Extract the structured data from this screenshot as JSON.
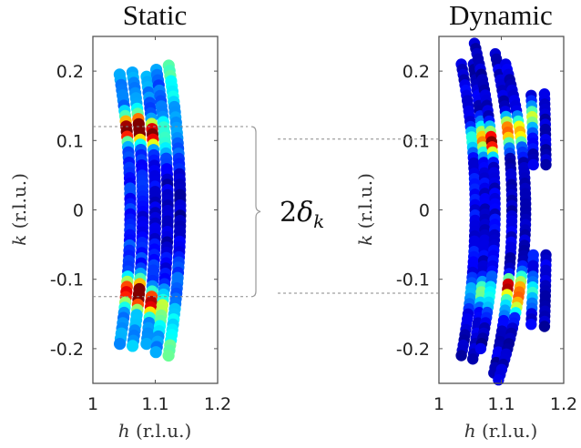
{
  "annotation": {
    "label_main": "2",
    "label_symbol": "δ",
    "label_sub": "k",
    "guide_k_static": [
      0.12,
      -0.125
    ],
    "guide_k_dynamic": [
      0.102,
      -0.12
    ]
  },
  "chart_data": [
    {
      "type": "scatter",
      "title": "Static",
      "xlabel_var": "h",
      "xlabel_unit": " (r.l.u.)",
      "ylabel_var": "k",
      "ylabel_unit": " (r.l.u.)",
      "xlim": [
        1.0,
        1.2
      ],
      "ylim": [
        -0.25,
        0.25
      ],
      "xticks": [
        1.0,
        1.1,
        1.2
      ],
      "xtick_labels": [
        "1",
        "1.1",
        "1.2"
      ],
      "yticks": [
        0.2,
        0.1,
        0,
        -0.1,
        -0.2
      ],
      "ytick_labels": [
        "0.2",
        "0.1",
        "0",
        "-0.1",
        "-0.2"
      ],
      "colormap": "jet",
      "columns": [
        {
          "h_edge": 1.042,
          "h_center": 1.06,
          "k_top": 0.195,
          "k_bottom": -0.193,
          "base": 0.3,
          "low": 0.15,
          "peaks": [
            [
              0.115,
              0.85,
              0.012
            ],
            [
              -0.118,
              0.72,
              0.012
            ]
          ]
        },
        {
          "h_edge": 1.063,
          "h_center": 1.08,
          "k_top": 0.198,
          "k_bottom": -0.196,
          "base": 0.32,
          "low": 0.12,
          "peaks": [
            [
              0.117,
              0.97,
              0.013
            ],
            [
              -0.122,
              0.96,
              0.014
            ]
          ]
        },
        {
          "h_edge": 1.085,
          "h_center": 1.1,
          "k_top": 0.192,
          "k_bottom": -0.193,
          "base": 0.3,
          "low": 0.1,
          "peaks": [
            [
              0.108,
              0.88,
              0.012
            ],
            [
              -0.135,
              0.8,
              0.012
            ]
          ]
        },
        {
          "h_edge": 1.102,
          "h_center": 1.12,
          "k_top": 0.202,
          "k_bottom": -0.205,
          "base": 0.25,
          "low": 0.06,
          "peaks": [
            [
              0.105,
              0.3,
              0.02
            ],
            [
              -0.145,
              0.38,
              0.02
            ]
          ]
        },
        {
          "h_edge": 1.123,
          "h_center": 1.14,
          "k_top": 0.208,
          "k_bottom": -0.21,
          "base": 0.45,
          "low": 0.06,
          "peaks": [
            [
              0.1,
              0.08,
              0.02
            ]
          ]
        }
      ]
    },
    {
      "type": "scatter",
      "title": "Dynamic",
      "xlabel_var": "h",
      "xlabel_unit": " (r.l.u.)",
      "ylabel_var": "k",
      "ylabel_unit": " (r.l.u.)",
      "xlim": [
        1.0,
        1.2
      ],
      "ylim": [
        -0.25,
        0.25
      ],
      "xticks": [
        1.0,
        1.1,
        1.2
      ],
      "xtick_labels": [
        "1",
        "1.1",
        "1.2"
      ],
      "yticks": [
        0.2,
        0.1,
        0,
        -0.1,
        -0.2
      ],
      "ytick_labels": [
        "0.2",
        "0.1",
        "0",
        "-0.1",
        "-0.2"
      ],
      "colormap": "jet",
      "columns": [
        {
          "h_edge": 1.038,
          "h_center": 1.058,
          "k_top": 0.21,
          "k_bottom": -0.21,
          "base": 0.08,
          "low": 0.12,
          "peaks": [
            [
              0.1,
              0.3,
              0.012
            ],
            [
              -0.12,
              0.22,
              0.015
            ]
          ]
        },
        {
          "h_edge": 1.057,
          "h_center": 1.074,
          "k_top": 0.21,
          "k_bottom": -0.215,
          "base": 0.07,
          "low": 0.1,
          "peaks": [
            [
              0.1,
              0.62,
              0.015
            ],
            [
              -0.12,
              0.45,
              0.014
            ]
          ]
        },
        {
          "h_edge": 1.067,
          "h_center": 1.09,
          "k_top": 0.24,
          "k_bottom": -0.2,
          "base": 0.06,
          "low": 0.1,
          "peaks": [
            [
              0.098,
              0.95,
              0.013
            ],
            [
              -0.125,
              0.3,
              0.02
            ]
          ]
        },
        {
          "h_edge": 1.096,
          "h_center": 1.117,
          "k_top": 0.225,
          "k_bottom": -0.235,
          "base": 0.07,
          "low": 0.08,
          "peaks": [
            [
              0.112,
              0.75,
              0.014
            ],
            [
              -0.11,
              0.85,
              0.008
            ],
            [
              -0.135,
              0.3,
              0.015
            ]
          ]
        },
        {
          "h_edge": 1.11,
          "h_center": 1.139,
          "k_top": 0.21,
          "k_bottom": -0.245,
          "base": 0.07,
          "low": 0.08,
          "peaks": [
            [
              0.112,
              0.6,
              0.014
            ],
            [
              -0.11,
              0.55,
              0.014
            ],
            [
              -0.135,
              0.5,
              0.012
            ]
          ]
        },
        {
          "h_edge": 1.146,
          "h_center": 1.152,
          "k_top": 0.165,
          "k_bottom": 0.065,
          "base": 0.08,
          "low": 0.1,
          "peaks": [
            [
              0.133,
              0.45,
              0.012
            ]
          ]
        },
        {
          "h_edge": 1.146,
          "h_center": 1.152,
          "k_top": -0.065,
          "k_bottom": -0.165,
          "base": 0.08,
          "low": 0.12,
          "peaks": [
            [
              -0.12,
              0.28,
              0.015
            ]
          ]
        },
        {
          "h_edge": 1.168,
          "h_center": 1.172,
          "k_top": 0.167,
          "k_bottom": 0.065,
          "base": 0.07,
          "low": 0.08,
          "peaks": []
        },
        {
          "h_edge": 1.168,
          "h_center": 1.172,
          "k_top": -0.065,
          "k_bottom": -0.168,
          "base": 0.07,
          "low": 0.08,
          "peaks": []
        }
      ]
    }
  ]
}
